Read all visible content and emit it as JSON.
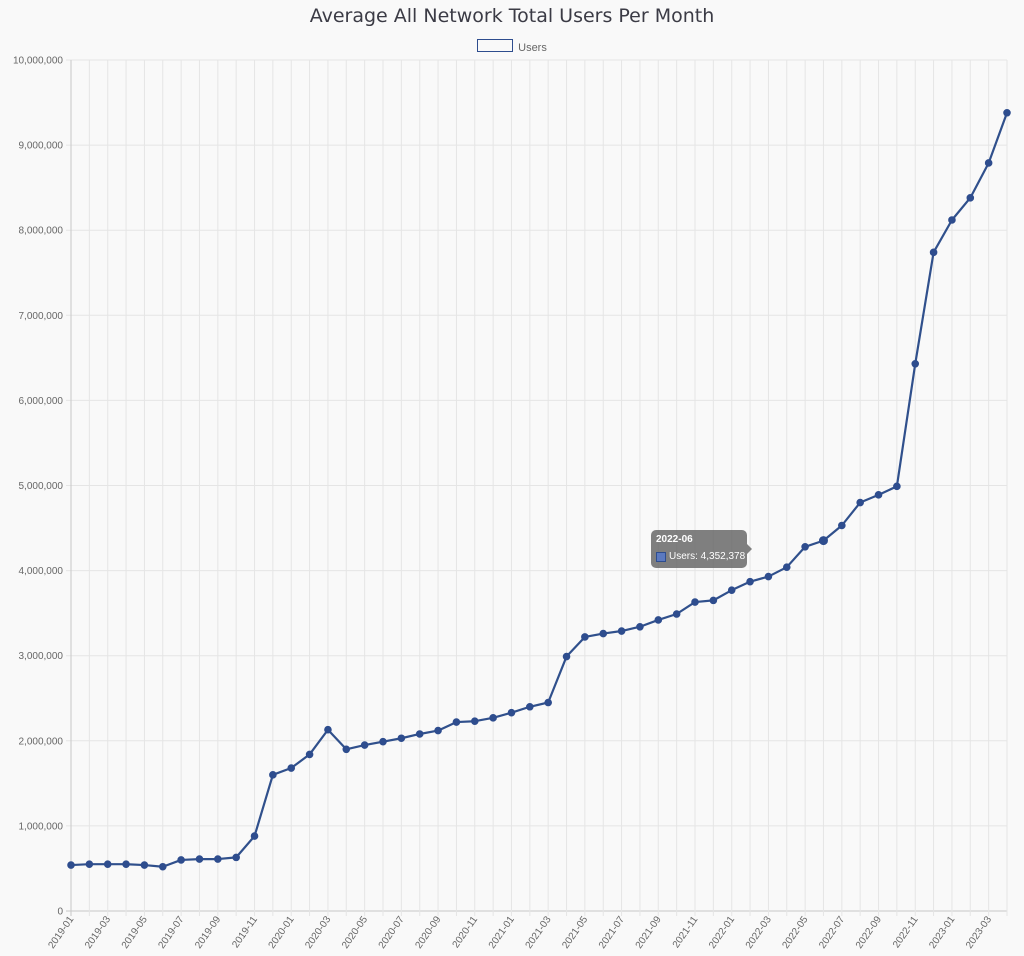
{
  "chart_data": {
    "type": "line",
    "title": "Average All Network Total Users Per Month",
    "legend": {
      "label": "Users",
      "position": "top-center"
    },
    "colors": {
      "line": "#30508c",
      "point": "#2e4d8e",
      "grid": "#e5e5e5"
    },
    "ylim": [
      0,
      10000000
    ],
    "y_ticks": [
      "0",
      "1,000,000",
      "2,000,000",
      "3,000,000",
      "4,000,000",
      "5,000,000",
      "6,000,000",
      "7,000,000",
      "8,000,000",
      "9,000,000",
      "10,000,000"
    ],
    "x_tick_labels": [
      "2019-01",
      "2019-03",
      "2019-05",
      "2019-07",
      "2019-09",
      "2019-11",
      "2020-01",
      "2020-03",
      "2020-05",
      "2020-07",
      "2020-09",
      "2020-11",
      "2021-01",
      "2021-03",
      "2021-05",
      "2021-07",
      "2021-09",
      "2021-11",
      "2022-01",
      "2022-03",
      "2022-05",
      "2022-07",
      "2022-09",
      "2022-11",
      "2023-01",
      "2023-03"
    ],
    "x": [
      "2019-01",
      "2019-02",
      "2019-03",
      "2019-04",
      "2019-05",
      "2019-06",
      "2019-07",
      "2019-08",
      "2019-09",
      "2019-10",
      "2019-11",
      "2019-12",
      "2020-01",
      "2020-02",
      "2020-03",
      "2020-04",
      "2020-05",
      "2020-06",
      "2020-07",
      "2020-08",
      "2020-09",
      "2020-10",
      "2020-11",
      "2020-12",
      "2021-01",
      "2021-02",
      "2021-03",
      "2021-04",
      "2021-05",
      "2021-06",
      "2021-07",
      "2021-08",
      "2021-09",
      "2021-10",
      "2021-11",
      "2021-12",
      "2022-01",
      "2022-02",
      "2022-03",
      "2022-04",
      "2022-05",
      "2022-06",
      "2022-07",
      "2022-08",
      "2022-09",
      "2022-10",
      "2022-11",
      "2022-12",
      "2023-01",
      "2023-02",
      "2023-03",
      "2023-04"
    ],
    "series": [
      {
        "name": "Users",
        "values": [
          540000,
          550000,
          550000,
          550000,
          540000,
          520000,
          600000,
          610000,
          610000,
          630000,
          880000,
          1600000,
          1680000,
          1840000,
          2130000,
          1900000,
          1950000,
          1990000,
          2030000,
          2080000,
          2120000,
          2220000,
          2230000,
          2270000,
          2330000,
          2400000,
          2450000,
          2990000,
          3220000,
          3260000,
          3290000,
          3340000,
          3420000,
          3490000,
          3630000,
          3650000,
          3770000,
          3870000,
          3930000,
          4040000,
          4280000,
          4352378,
          4530000,
          4800000,
          4890000,
          4990000,
          6430000,
          7740000,
          8120000,
          8380000,
          8790000,
          9380000
        ]
      }
    ],
    "tooltip": {
      "title": "2022-06",
      "label": "Users: 4,352,378"
    }
  }
}
